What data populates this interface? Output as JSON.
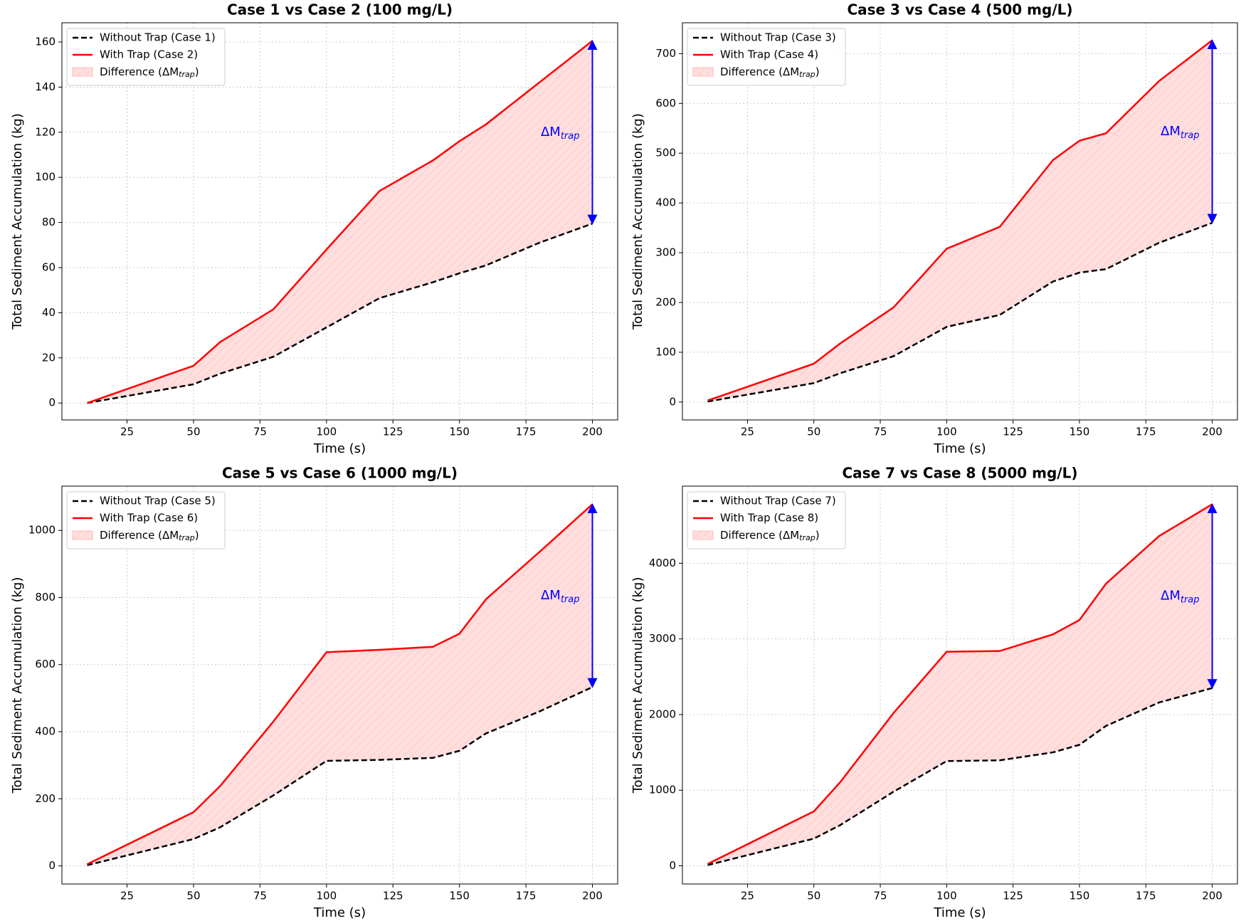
{
  "chart_data": [
    {
      "type": "line",
      "title": "Case 1 vs Case 2 (100 mg/L)",
      "xlabel": "Time (s)",
      "ylabel": "Total Sediment Accumulation (kg)",
      "x": [
        10,
        50,
        60,
        80,
        100,
        120,
        140,
        150,
        160,
        180,
        200
      ],
      "series": [
        {
          "name": "Without Trap (Case 1)",
          "color": "#000000",
          "linestyle": "dashed",
          "values": [
            0,
            8.3,
            13,
            20.5,
            33.5,
            46.5,
            53.5,
            57.5,
            61,
            71,
            79.5
          ]
        },
        {
          "name": "With Trap (Case 2)",
          "color": "#ff0000",
          "linestyle": "solid",
          "values": [
            0,
            16.5,
            27,
            41.5,
            68,
            94,
            107.5,
            116,
            123.5,
            142,
            160.5
          ]
        }
      ],
      "fill_label": [
        "Difference (",
        "ΔM",
        "trap",
        ")"
      ],
      "fill_color": "#ffdede",
      "annotation": [
        "ΔM",
        "trap"
      ],
      "annotation_color": "#0000ff",
      "xlim": [
        0.5,
        209.5
      ],
      "ylim": [
        -7.5,
        168.5
      ],
      "xticks": [
        25,
        50,
        75,
        100,
        125,
        150,
        175,
        200
      ],
      "yticks": [
        0,
        20,
        40,
        60,
        80,
        100,
        120,
        140,
        160
      ],
      "grid": true,
      "legend": "upper left"
    },
    {
      "type": "line",
      "title": "Case 3 vs Case 4 (500 mg/L)",
      "xlabel": "Time (s)",
      "ylabel": "Total Sediment Accumulation (kg)",
      "x": [
        10,
        50,
        60,
        80,
        100,
        120,
        140,
        150,
        160,
        180,
        200
      ],
      "series": [
        {
          "name": "Without Trap (Case 3)",
          "color": "#000000",
          "linestyle": "dashed",
          "values": [
            1,
            38,
            58,
            92,
            151,
            175,
            242,
            260,
            267,
            320,
            360
          ]
        },
        {
          "name": "With Trap (Case 4)",
          "color": "#ff0000",
          "linestyle": "solid",
          "values": [
            3,
            77,
            118,
            190,
            308,
            352,
            486,
            525,
            540,
            645,
            727
          ]
        }
      ],
      "fill_label": [
        "Difference (",
        "ΔM",
        "trap",
        ")"
      ],
      "fill_color": "#ffdede",
      "annotation": [
        "ΔM",
        "trap"
      ],
      "annotation_color": "#0000ff",
      "xlim": [
        0.5,
        209.5
      ],
      "ylim": [
        -36,
        762
      ],
      "xticks": [
        25,
        50,
        75,
        100,
        125,
        150,
        175,
        200
      ],
      "yticks": [
        0,
        100,
        200,
        300,
        400,
        500,
        600,
        700
      ],
      "grid": true,
      "legend": "upper left"
    },
    {
      "type": "line",
      "title": "Case 5 vs Case 6 (1000 mg/L)",
      "xlabel": "Time (s)",
      "ylabel": "Total Sediment Accumulation (kg)",
      "x": [
        10,
        50,
        60,
        80,
        100,
        120,
        140,
        150,
        160,
        180,
        200
      ],
      "series": [
        {
          "name": "Without Trap (Case 5)",
          "color": "#000000",
          "linestyle": "dashed",
          "values": [
            2,
            80,
            115,
            210,
            313,
            316,
            322,
            343,
            395,
            460,
            533
          ]
        },
        {
          "name": "With Trap (Case 6)",
          "color": "#ff0000",
          "linestyle": "solid",
          "values": [
            5,
            160,
            238,
            430,
            637,
            644,
            653,
            692,
            795,
            935,
            1078
          ]
        }
      ],
      "fill_label": [
        "Difference (",
        "ΔM",
        "trap",
        ")"
      ],
      "fill_color": "#ffdede",
      "annotation": [
        "ΔM",
        "trap"
      ],
      "annotation_color": "#0000ff",
      "xlim": [
        0.5,
        209.5
      ],
      "ylim": [
        -54,
        1132
      ],
      "xticks": [
        25,
        50,
        75,
        100,
        125,
        150,
        175,
        200
      ],
      "yticks": [
        0,
        200,
        400,
        600,
        800,
        1000
      ],
      "grid": true,
      "legend": "upper left"
    },
    {
      "type": "line",
      "title": "Case 7 vs Case 8 (5000 mg/L)",
      "xlabel": "Time (s)",
      "ylabel": "Total Sediment Accumulation (kg)",
      "x": [
        10,
        50,
        60,
        80,
        100,
        120,
        140,
        150,
        160,
        180,
        200
      ],
      "series": [
        {
          "name": "Without Trap (Case 7)",
          "color": "#000000",
          "linestyle": "dashed",
          "values": [
            10,
            360,
            540,
            980,
            1385,
            1395,
            1500,
            1600,
            1850,
            2160,
            2350
          ]
        },
        {
          "name": "With Trap (Case 8)",
          "color": "#ff0000",
          "linestyle": "solid",
          "values": [
            25,
            720,
            1110,
            2020,
            2830,
            2840,
            3060,
            3250,
            3730,
            4360,
            4780
          ]
        }
      ],
      "fill_label": [
        "Difference (",
        "ΔM",
        "trap",
        ")"
      ],
      "fill_color": "#ffdede",
      "annotation": [
        "ΔM",
        "trap"
      ],
      "annotation_color": "#0000ff",
      "xlim": [
        0.5,
        209.5
      ],
      "ylim": [
        -240,
        5020
      ],
      "xticks": [
        25,
        50,
        75,
        100,
        125,
        150,
        175,
        200
      ],
      "yticks": [
        0,
        1000,
        2000,
        3000,
        4000
      ],
      "grid": true,
      "legend": "upper left"
    }
  ]
}
